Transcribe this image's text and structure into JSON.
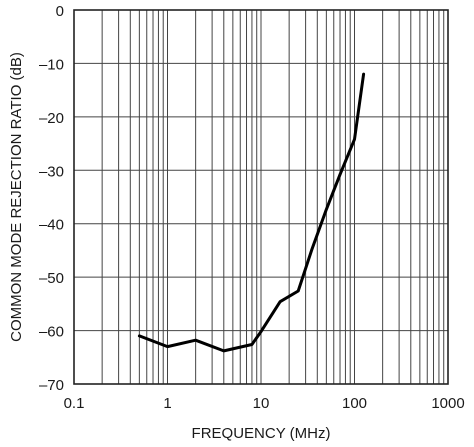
{
  "chart_data": {
    "type": "line",
    "xlabel": "FREQUENCY (MHz)",
    "ylabel": "COMMON MODE REJECTION RATIO (dB)",
    "x_scale": "log",
    "xlim": [
      0.1,
      1000
    ],
    "ylim": [
      -70,
      0
    ],
    "x_ticks": [
      0.1,
      1,
      10,
      100,
      1000
    ],
    "x_tick_labels": [
      "0.1",
      "1",
      "10",
      "100",
      "1000"
    ],
    "y_ticks": [
      0,
      -10,
      -20,
      -30,
      -40,
      -50,
      -60,
      -70
    ],
    "y_tick_labels": [
      "0",
      "–10",
      "–20",
      "–30",
      "–40",
      "–50",
      "–60",
      "–70"
    ],
    "grid": true,
    "series": [
      {
        "x": [
          0.5,
          1,
          2,
          4,
          8,
          10,
          16,
          25,
          35,
          50,
          70,
          100,
          125
        ],
        "y": [
          -61,
          -63,
          -61.8,
          -63.8,
          -62.6,
          -60.2,
          -54.6,
          -52.6,
          -44.8,
          -37.3,
          -30.8,
          -24.2,
          -12
        ]
      }
    ]
  }
}
